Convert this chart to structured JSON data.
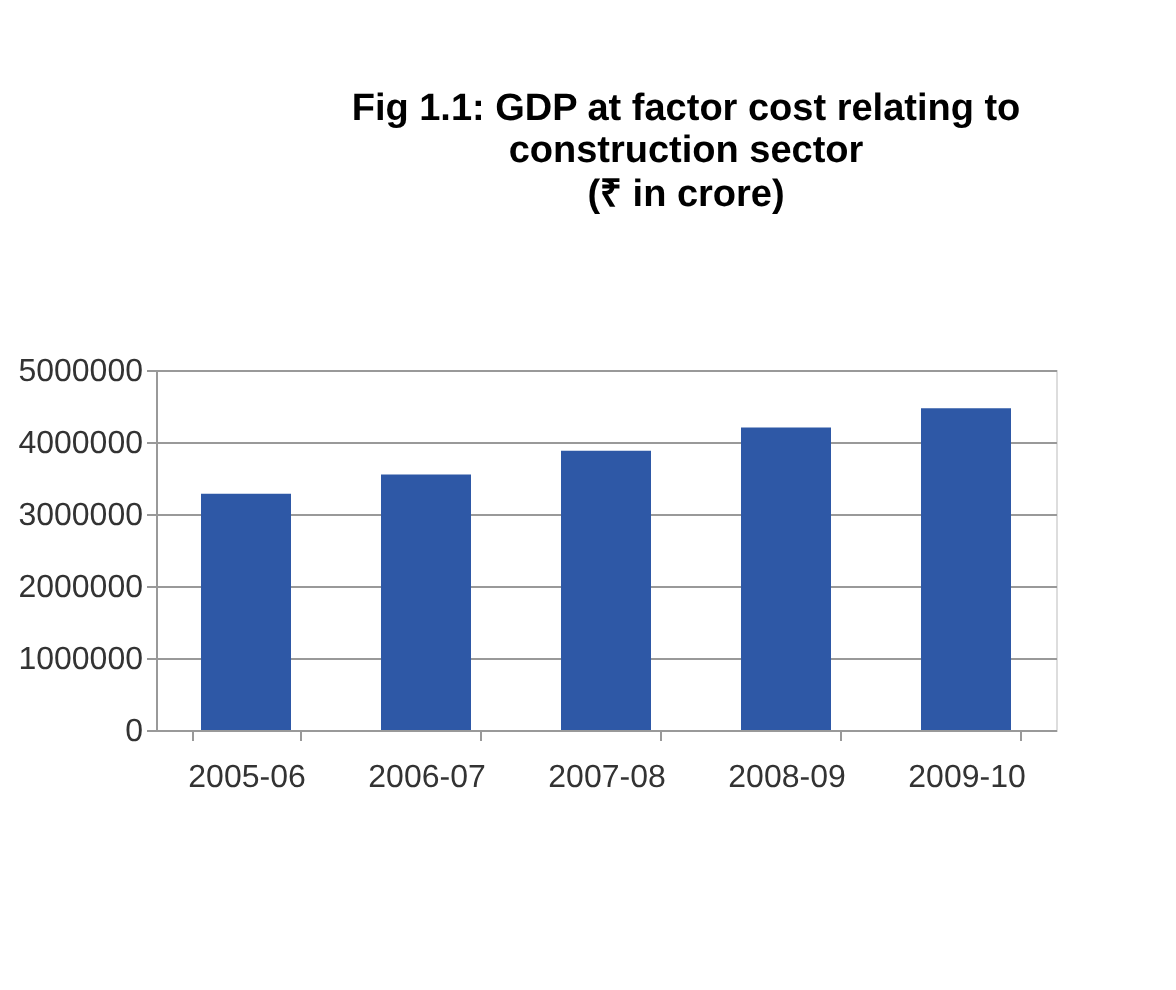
{
  "chart_data": {
    "type": "bar",
    "title": "Fig 1.1:  GDP at factor cost relating to construction sector",
    "subtitle": "(₹ in crore)",
    "categories": [
      "2005-06",
      "2006-07",
      "2007-08",
      "2008-09",
      "2009-10"
    ],
    "values": [
      3280000,
      3550000,
      3880000,
      4200000,
      4470000
    ],
    "color": "#2e58a6",
    "ylim": [
      0,
      5000000
    ],
    "yticks": [
      0,
      1000000,
      2000000,
      3000000,
      4000000,
      5000000
    ],
    "grid": "y"
  }
}
